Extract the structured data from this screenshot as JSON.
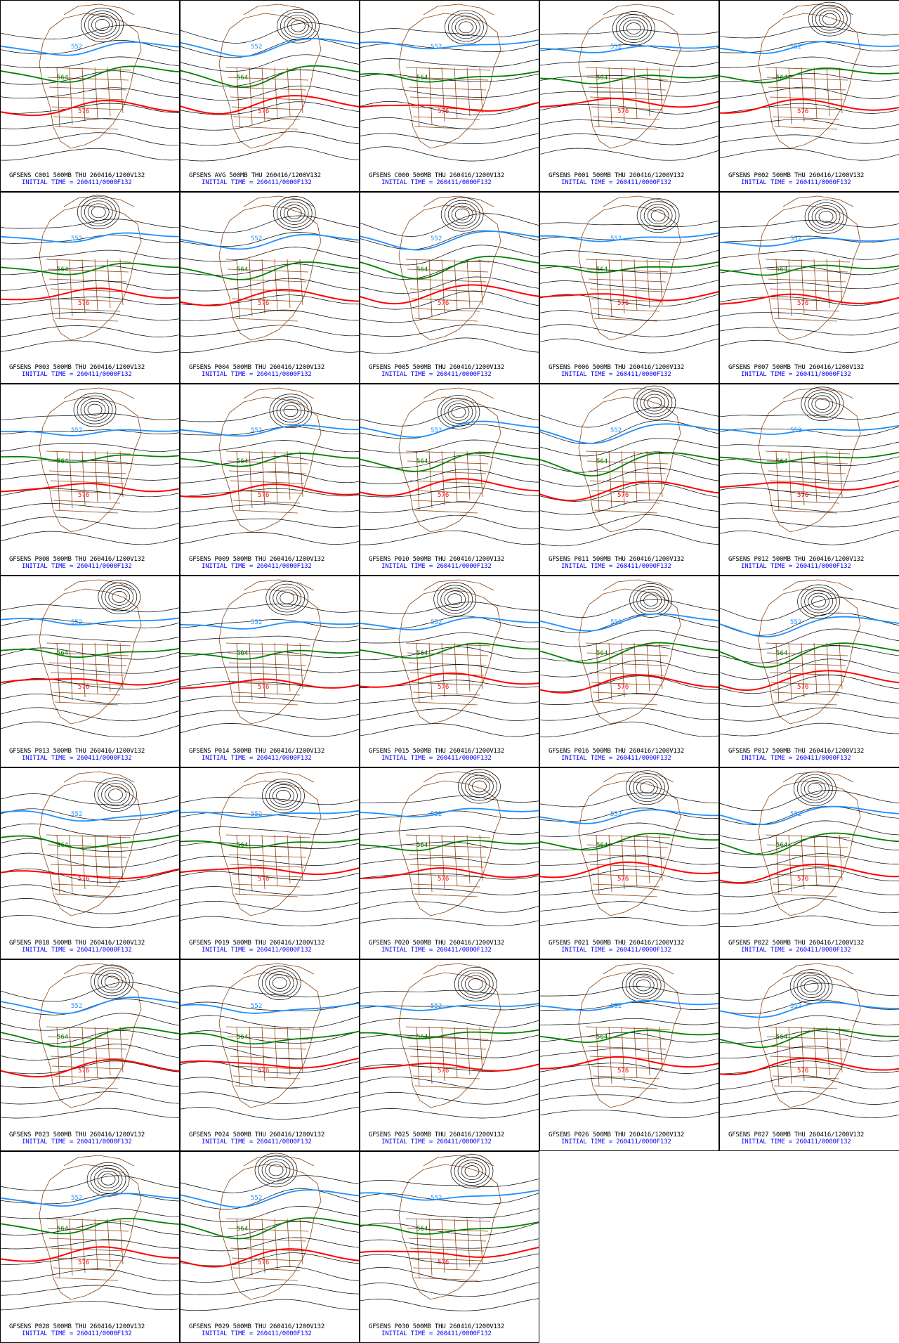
{
  "colors": {
    "contour": "#000000",
    "contour_552": "#1e90ff",
    "contour_564": "#008000",
    "contour_576": "#ff0000",
    "coastline": "#8b4513",
    "caption_top": "#000000",
    "caption_bottom": "#0000ff"
  },
  "contour_labels": {
    "blue": "552",
    "green": "564",
    "red": "576"
  },
  "initial_time": "INITIAL TIME = 260411/0000F132",
  "panels": [
    {
      "caption": "GFSENS C001 500MB THU 260416/1200V132"
    },
    {
      "caption": "GFSENS AVG 500MB THU 260416/1200V132"
    },
    {
      "caption": "GFSENS C000 500MB THU 260416/1200V132"
    },
    {
      "caption": "GFSENS P001 500MB THU 260416/1200V132"
    },
    {
      "caption": "GFSENS P002 500MB THU 260416/1200V132"
    },
    {
      "caption": "GFSENS P003 500MB THU 260416/1200V132"
    },
    {
      "caption": "GFSENS P004 500MB THU 260416/1200V132"
    },
    {
      "caption": "GFSENS P005 500MB THU 260416/1200V132"
    },
    {
      "caption": "GFSENS P006 500MB THU 260416/1200V132"
    },
    {
      "caption": "GFSENS P007 500MB THU 260416/1200V132"
    },
    {
      "caption": "GFSENS P008 500MB THU 260416/1200V132"
    },
    {
      "caption": "GFSENS P009 500MB THU 260416/1200V132"
    },
    {
      "caption": "GFSENS P010 500MB THU 260416/1200V132"
    },
    {
      "caption": "GFSENS P011 500MB THU 260416/1200V132"
    },
    {
      "caption": "GFSENS P012 500MB THU 260416/1200V132"
    },
    {
      "caption": "GFSENS P013 500MB THU 260416/1200V132"
    },
    {
      "caption": "GFSENS P014 500MB THU 260416/1200V132"
    },
    {
      "caption": "GFSENS P015 500MB THU 260416/1200V132"
    },
    {
      "caption": "GFSENS P016 500MB THU 260416/1200V132"
    },
    {
      "caption": "GFSENS P017 500MB THU 260416/1200V132"
    },
    {
      "caption": "GFSENS P018 500MB THU 260416/1200V132"
    },
    {
      "caption": "GFSENS P019 500MB THU 260416/1200V132"
    },
    {
      "caption": "GFSENS P020 500MB THU 260416/1200V132"
    },
    {
      "caption": "GFSENS P021 500MB THU 260416/1200V132"
    },
    {
      "caption": "GFSENS P022 500MB THU 260416/1200V132"
    },
    {
      "caption": "GFSENS P023 500MB THU 260416/1200V132"
    },
    {
      "caption": "GFSENS P024 500MB THU 260416/1200V132"
    },
    {
      "caption": "GFSENS P025 500MB THU 260416/1200V132"
    },
    {
      "caption": "GFSENS P026 500MB THU 260416/1200V132"
    },
    {
      "caption": "GFSENS P027 500MB THU 260416/1200V132"
    },
    {
      "caption": "GFSENS P028 500MB THU 260416/1200V132"
    },
    {
      "caption": "GFSENS P029 500MB THU 260416/1200V132"
    },
    {
      "caption": "GFSENS P030 500MB THU 260416/1200V132"
    }
  ]
}
